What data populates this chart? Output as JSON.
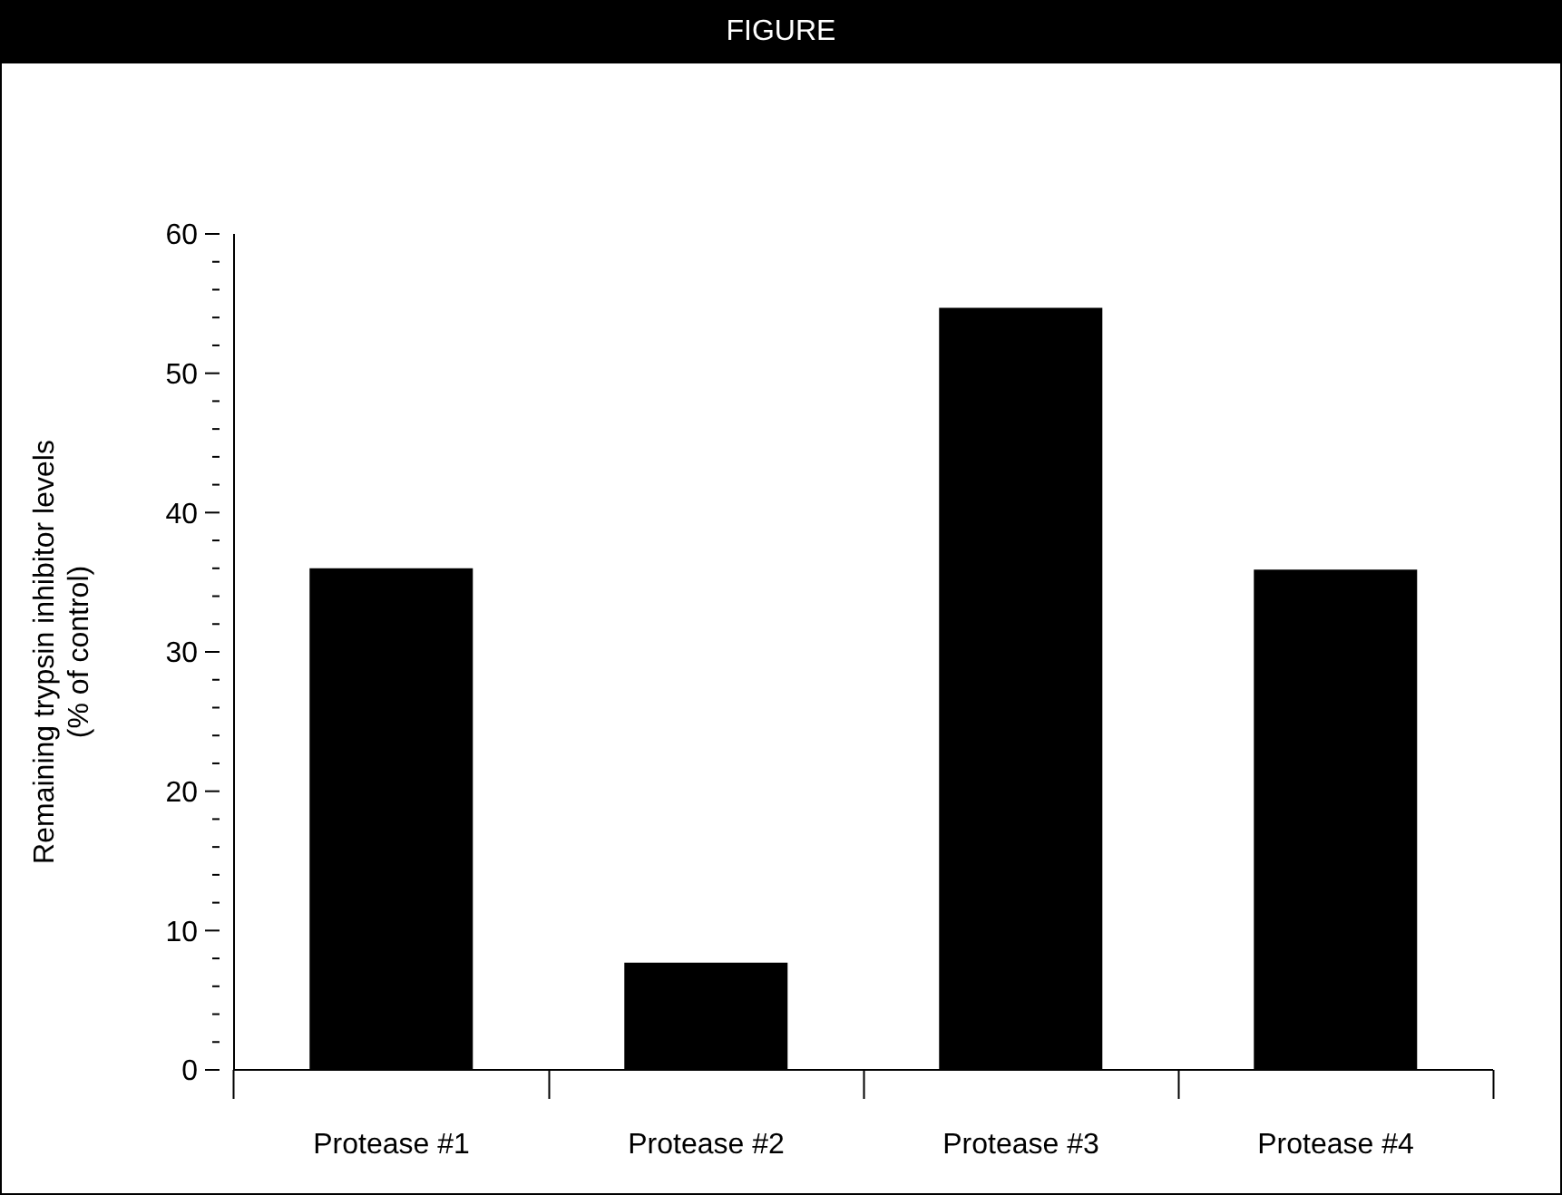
{
  "chart_data": {
    "type": "bar",
    "title": "FIGURE",
    "ylabel": "Remaining trypsin inhibitor levels\n(% of control)",
    "categories": [
      "Protease #1",
      "Protease #2",
      "Protease #3",
      "Protease #4"
    ],
    "values": [
      36,
      7.7,
      54.7,
      35.9
    ],
    "color": "#000000",
    "ylim": [
      0,
      60
    ],
    "yticks": [
      0,
      {
        "value": 2,
        "label": null
      },
      {
        "value": 4,
        "label": null
      },
      {
        "value": 6,
        "label": null
      },
      {
        "value": 8,
        "label": null
      },
      10,
      {
        "value": 12,
        "label": null
      },
      {
        "value": 14,
        "label": null
      },
      {
        "value": 16,
        "label": null
      },
      {
        "value": 18,
        "label": null
      },
      20,
      {
        "value": 22,
        "label": null
      },
      {
        "value": 24,
        "label": null
      },
      {
        "value": 26,
        "label": null
      },
      {
        "value": 28,
        "label": null
      },
      30,
      {
        "value": 32,
        "label": null
      },
      {
        "value": 34,
        "label": null
      },
      {
        "value": 36,
        "label": null
      },
      {
        "value": 38,
        "label": null
      },
      40,
      {
        "value": 42,
        "label": null
      },
      {
        "value": 44,
        "label": null
      },
      {
        "value": 46,
        "label": null
      },
      {
        "value": 48,
        "label": null
      },
      50,
      {
        "value": 52,
        "label": null
      },
      {
        "value": 54,
        "label": null
      },
      {
        "value": 56,
        "label": null
      },
      {
        "value": 58,
        "label": null
      },
      60
    ],
    "grid": false,
    "legend": false
  }
}
